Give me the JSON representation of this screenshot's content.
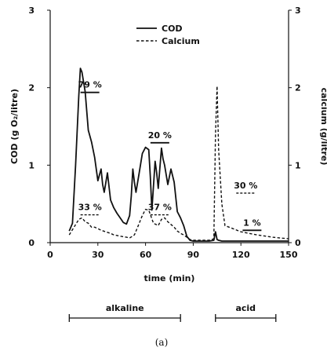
{
  "chart_data": {
    "type": "line",
    "xlabel": "time (min)",
    "ylabel_left": "COD (g O₂/litre)",
    "ylabel_right": "calcium (g/litre)",
    "xlim": [
      0,
      150
    ],
    "ylim_left": [
      0,
      3
    ],
    "ylim_right": [
      0,
      3
    ],
    "x_ticks": [
      "0",
      "30",
      "60",
      "90",
      "120",
      "150"
    ],
    "x_tick_values": [
      0,
      30,
      60,
      90,
      120,
      150
    ],
    "y_ticks_left": [
      "0",
      "1",
      "2",
      "3"
    ],
    "y_ticks_right": [
      "0",
      "1",
      "2",
      "3"
    ],
    "y_tick_values": [
      0,
      1,
      2,
      3
    ],
    "legend_position": "top-center",
    "series": [
      {
        "name": "COD",
        "style": "solid",
        "color": "#111111",
        "x": [
          12,
          14,
          16,
          18,
          19,
          20,
          22,
          24,
          26,
          28,
          30,
          32,
          33,
          34,
          36,
          38,
          40,
          42,
          44,
          46,
          48,
          50,
          51,
          52,
          53,
          54,
          56,
          58,
          60,
          62,
          63,
          64,
          66,
          67,
          68,
          70,
          71,
          72,
          74,
          76,
          78,
          80,
          82,
          84,
          86,
          88,
          90,
          95,
          100,
          103,
          104,
          105,
          106,
          108,
          110,
          115,
          120,
          130,
          140,
          150
        ],
        "y": [
          0.15,
          0.25,
          1.0,
          1.9,
          2.25,
          2.2,
          1.95,
          1.45,
          1.3,
          1.1,
          0.8,
          0.95,
          0.75,
          0.65,
          0.9,
          0.55,
          0.45,
          0.38,
          0.32,
          0.26,
          0.24,
          0.35,
          0.6,
          0.95,
          0.78,
          0.65,
          0.9,
          1.15,
          1.23,
          1.2,
          0.85,
          0.42,
          1.05,
          0.9,
          0.7,
          1.22,
          1.08,
          1.0,
          0.75,
          0.95,
          0.78,
          0.4,
          0.32,
          0.22,
          0.08,
          0.03,
          0.02,
          0.02,
          0.02,
          0.03,
          0.14,
          0.04,
          0.03,
          0.02,
          0.02,
          0.02,
          0.02,
          0.02,
          0.02,
          0.02
        ]
      },
      {
        "name": "Calcium",
        "style": "dashed",
        "color": "#111111",
        "x": [
          12,
          15,
          18,
          20,
          22,
          24,
          26,
          28,
          30,
          32,
          35,
          38,
          40,
          45,
          48,
          50,
          53,
          55,
          58,
          60,
          62,
          65,
          68,
          70,
          72,
          74,
          78,
          80,
          82,
          84,
          86,
          88,
          90,
          95,
          100,
          103,
          104,
          105,
          106,
          108,
          110,
          115,
          120,
          130,
          140,
          150
        ],
        "y": [
          0.1,
          0.2,
          0.3,
          0.32,
          0.27,
          0.25,
          0.2,
          0.2,
          0.18,
          0.16,
          0.14,
          0.12,
          0.1,
          0.08,
          0.07,
          0.06,
          0.1,
          0.2,
          0.35,
          0.43,
          0.42,
          0.25,
          0.22,
          0.3,
          0.32,
          0.27,
          0.2,
          0.15,
          0.12,
          0.1,
          0.07,
          0.04,
          0.03,
          0.03,
          0.03,
          0.05,
          1.4,
          2.02,
          1.2,
          0.5,
          0.22,
          0.18,
          0.14,
          0.1,
          0.07,
          0.05
        ]
      }
    ],
    "annotations": [
      {
        "text": "79 %",
        "style": "solid",
        "x": 25,
        "y": 2.0
      },
      {
        "text": "33 %",
        "style": "dashed",
        "x": 25,
        "y": 0.42
      },
      {
        "text": "20 %",
        "style": "solid",
        "x": 69,
        "y": 1.35
      },
      {
        "text": "37 %",
        "style": "dashed",
        "x": 69,
        "y": 0.42
      },
      {
        "text": "30 %",
        "style": "dashed",
        "x": 123,
        "y": 0.7
      },
      {
        "text": "1 %",
        "style": "solid",
        "x": 127,
        "y": 0.22
      }
    ],
    "phases": [
      {
        "label": "alkaline",
        "x_start": 12,
        "x_end": 82
      },
      {
        "label": "acid",
        "x_start": 104,
        "x_end": 142
      }
    ],
    "caption": "(a)"
  }
}
